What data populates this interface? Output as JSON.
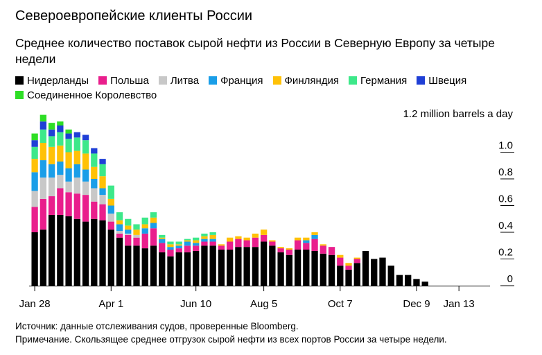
{
  "header": {
    "title": "Североевропейские клиенты России",
    "subtitle": "Среднее количество поставок сырой нефти из России в Северную Европу за четыре недели"
  },
  "footer": {
    "source": "Источник: данные отслеживания судов, проверенные Bloomberg.",
    "note": "Примечание. Скользящее среднее отгрузок сырой нефти из всех портов России за четыре недели."
  },
  "chart_data": {
    "type": "bar",
    "stacked": true,
    "unit_label": "1.2 million barrels a day",
    "ylim": [
      0,
      1.2
    ],
    "yticks": [
      {
        "value": 0,
        "label": "0"
      },
      {
        "value": 0.2,
        "label": "0.2"
      },
      {
        "value": 0.4,
        "label": "0.4"
      },
      {
        "value": 0.6,
        "label": "0.6"
      },
      {
        "value": 0.8,
        "label": "0.8"
      },
      {
        "value": 1.0,
        "label": "1.0"
      }
    ],
    "xticks": [
      {
        "index": 0,
        "label": "Jan 28"
      },
      {
        "index": 9,
        "label": "Apr 1"
      },
      {
        "index": 19,
        "label": "Jun 10"
      },
      {
        "index": 27,
        "label": "Aug 5"
      },
      {
        "index": 36,
        "label": "Oct 7"
      },
      {
        "index": 45,
        "label": "Dec 9"
      },
      {
        "index": 50,
        "label": "Jan 13"
      }
    ],
    "legend_position": "top",
    "grid": false,
    "series": [
      {
        "name": "Нидерланды",
        "color": "#000000",
        "values": [
          0.4,
          0.42,
          0.53,
          0.53,
          0.52,
          0.5,
          0.48,
          0.5,
          0.49,
          0.42,
          0.36,
          0.3,
          0.3,
          0.28,
          0.3,
          0.25,
          0.22,
          0.25,
          0.25,
          0.26,
          0.3,
          0.3,
          0.27,
          0.27,
          0.29,
          0.29,
          0.29,
          0.33,
          0.3,
          0.25,
          0.23,
          0.27,
          0.27,
          0.26,
          0.24,
          0.23,
          0.15,
          0.12,
          0.17,
          0.26,
          0.2,
          0.21,
          0.15,
          0.08,
          0.08,
          0.05,
          0.03,
          0,
          0,
          0,
          0,
          0,
          0,
          0
        ]
      },
      {
        "name": "Польша",
        "color": "#e91e8c",
        "values": [
          0.19,
          0.23,
          0.14,
          0.2,
          0.18,
          0.19,
          0.2,
          0.13,
          0.12,
          0.06,
          0.03,
          0.08,
          0.06,
          0.11,
          0.13,
          0.07,
          0.05,
          0.03,
          0.05,
          0.04,
          0.03,
          0.03,
          0.03,
          0.06,
          0.06,
          0.05,
          0.07,
          0.05,
          0.03,
          0.03,
          0.04,
          0.07,
          0.05,
          0.09,
          0.06,
          0.06,
          0.06,
          0.03,
          0.03,
          0,
          0,
          0,
          0,
          0,
          0,
          0,
          0,
          0,
          0,
          0,
          0,
          0,
          0,
          0
        ]
      },
      {
        "name": "Литва",
        "color": "#c8c8c8",
        "values": [
          0.12,
          0.16,
          0.14,
          0.1,
          0.08,
          0.12,
          0.1,
          0.1,
          0.07,
          0.06,
          0.02,
          0.01,
          0.02,
          0,
          0,
          0,
          0,
          0,
          0,
          0,
          0,
          0,
          0,
          0,
          0,
          0,
          0,
          0,
          0,
          0,
          0,
          0,
          0,
          0,
          0,
          0,
          0,
          0,
          0,
          0,
          0,
          0,
          0,
          0,
          0,
          0,
          0,
          0,
          0,
          0,
          0,
          0,
          0,
          0
        ]
      },
      {
        "name": "Франция",
        "color": "#1a9ee8",
        "values": [
          0.14,
          0.13,
          0.1,
          0.1,
          0.1,
          0.1,
          0.09,
          0.07,
          0.05,
          0.06,
          0.05,
          0.03,
          0,
          0.04,
          0.04,
          0.03,
          0.02,
          0.02,
          0.03,
          0.02,
          0.02,
          0.02,
          0,
          0,
          0,
          0,
          0,
          0,
          0,
          0,
          0,
          0,
          0.02,
          0.03,
          0,
          0,
          0,
          0,
          0,
          0,
          0,
          0,
          0,
          0,
          0,
          0,
          0,
          0,
          0,
          0,
          0,
          0,
          0,
          0
        ]
      },
      {
        "name": "Финляндия",
        "color": "#ffc107",
        "values": [
          0.1,
          0.13,
          0.13,
          0.12,
          0.12,
          0.1,
          0.12,
          0.09,
          0.09,
          0.05,
          0.03,
          0.03,
          0.04,
          0.03,
          0.04,
          0.01,
          0.02,
          0.01,
          0.01,
          0.02,
          0.02,
          0.03,
          0.01,
          0.03,
          0.02,
          0.02,
          0.03,
          0.04,
          0.01,
          0.01,
          0.01,
          0.02,
          0.02,
          0.02,
          0.01,
          0,
          0.02,
          0.02,
          0.01,
          0,
          0,
          0,
          0,
          0,
          0,
          0,
          0,
          0,
          0,
          0,
          0,
          0,
          0,
          0
        ]
      },
      {
        "name": "Германия",
        "color": "#3de88a",
        "values": [
          0.09,
          0.1,
          0.08,
          0.1,
          0.1,
          0.1,
          0.1,
          0.1,
          0.09,
          0.1,
          0.06,
          0.05,
          0.04,
          0.05,
          0.04,
          0.02,
          0.02,
          0.02,
          0.01,
          0.02,
          0.02,
          0.02,
          0,
          0,
          0,
          0,
          0,
          0,
          0,
          0,
          0,
          0,
          0,
          0,
          0,
          0,
          0,
          0,
          0,
          0,
          0,
          0,
          0,
          0,
          0,
          0,
          0,
          0,
          0,
          0,
          0,
          0,
          0,
          0
        ]
      },
      {
        "name": "Швеция",
        "color": "#1f3fd6",
        "values": [
          0.05,
          0.06,
          0.05,
          0.05,
          0.04,
          0.04,
          0.04,
          0.04,
          0.04,
          0,
          0,
          0,
          0,
          0,
          0,
          0,
          0,
          0,
          0,
          0,
          0,
          0,
          0,
          0,
          0,
          0,
          0,
          0,
          0,
          0,
          0,
          0,
          0,
          0,
          0,
          0,
          0,
          0,
          0,
          0,
          0,
          0,
          0,
          0,
          0,
          0,
          0,
          0,
          0,
          0,
          0,
          0,
          0,
          0
        ]
      },
      {
        "name": "Соединенное Королевство",
        "color": "#2ede25",
        "values": [
          0.05,
          0.05,
          0.05,
          0.03,
          0.03,
          0,
          0,
          0,
          0,
          0,
          0,
          0,
          0,
          0,
          0,
          0,
          0,
          0,
          0,
          0,
          0,
          0,
          0,
          0,
          0,
          0,
          0,
          0,
          0,
          0,
          0,
          0,
          0,
          0,
          0,
          0,
          0,
          0,
          0,
          0,
          0,
          0,
          0,
          0,
          0,
          0,
          0,
          0,
          0,
          0,
          0,
          0,
          0,
          0
        ]
      }
    ]
  }
}
